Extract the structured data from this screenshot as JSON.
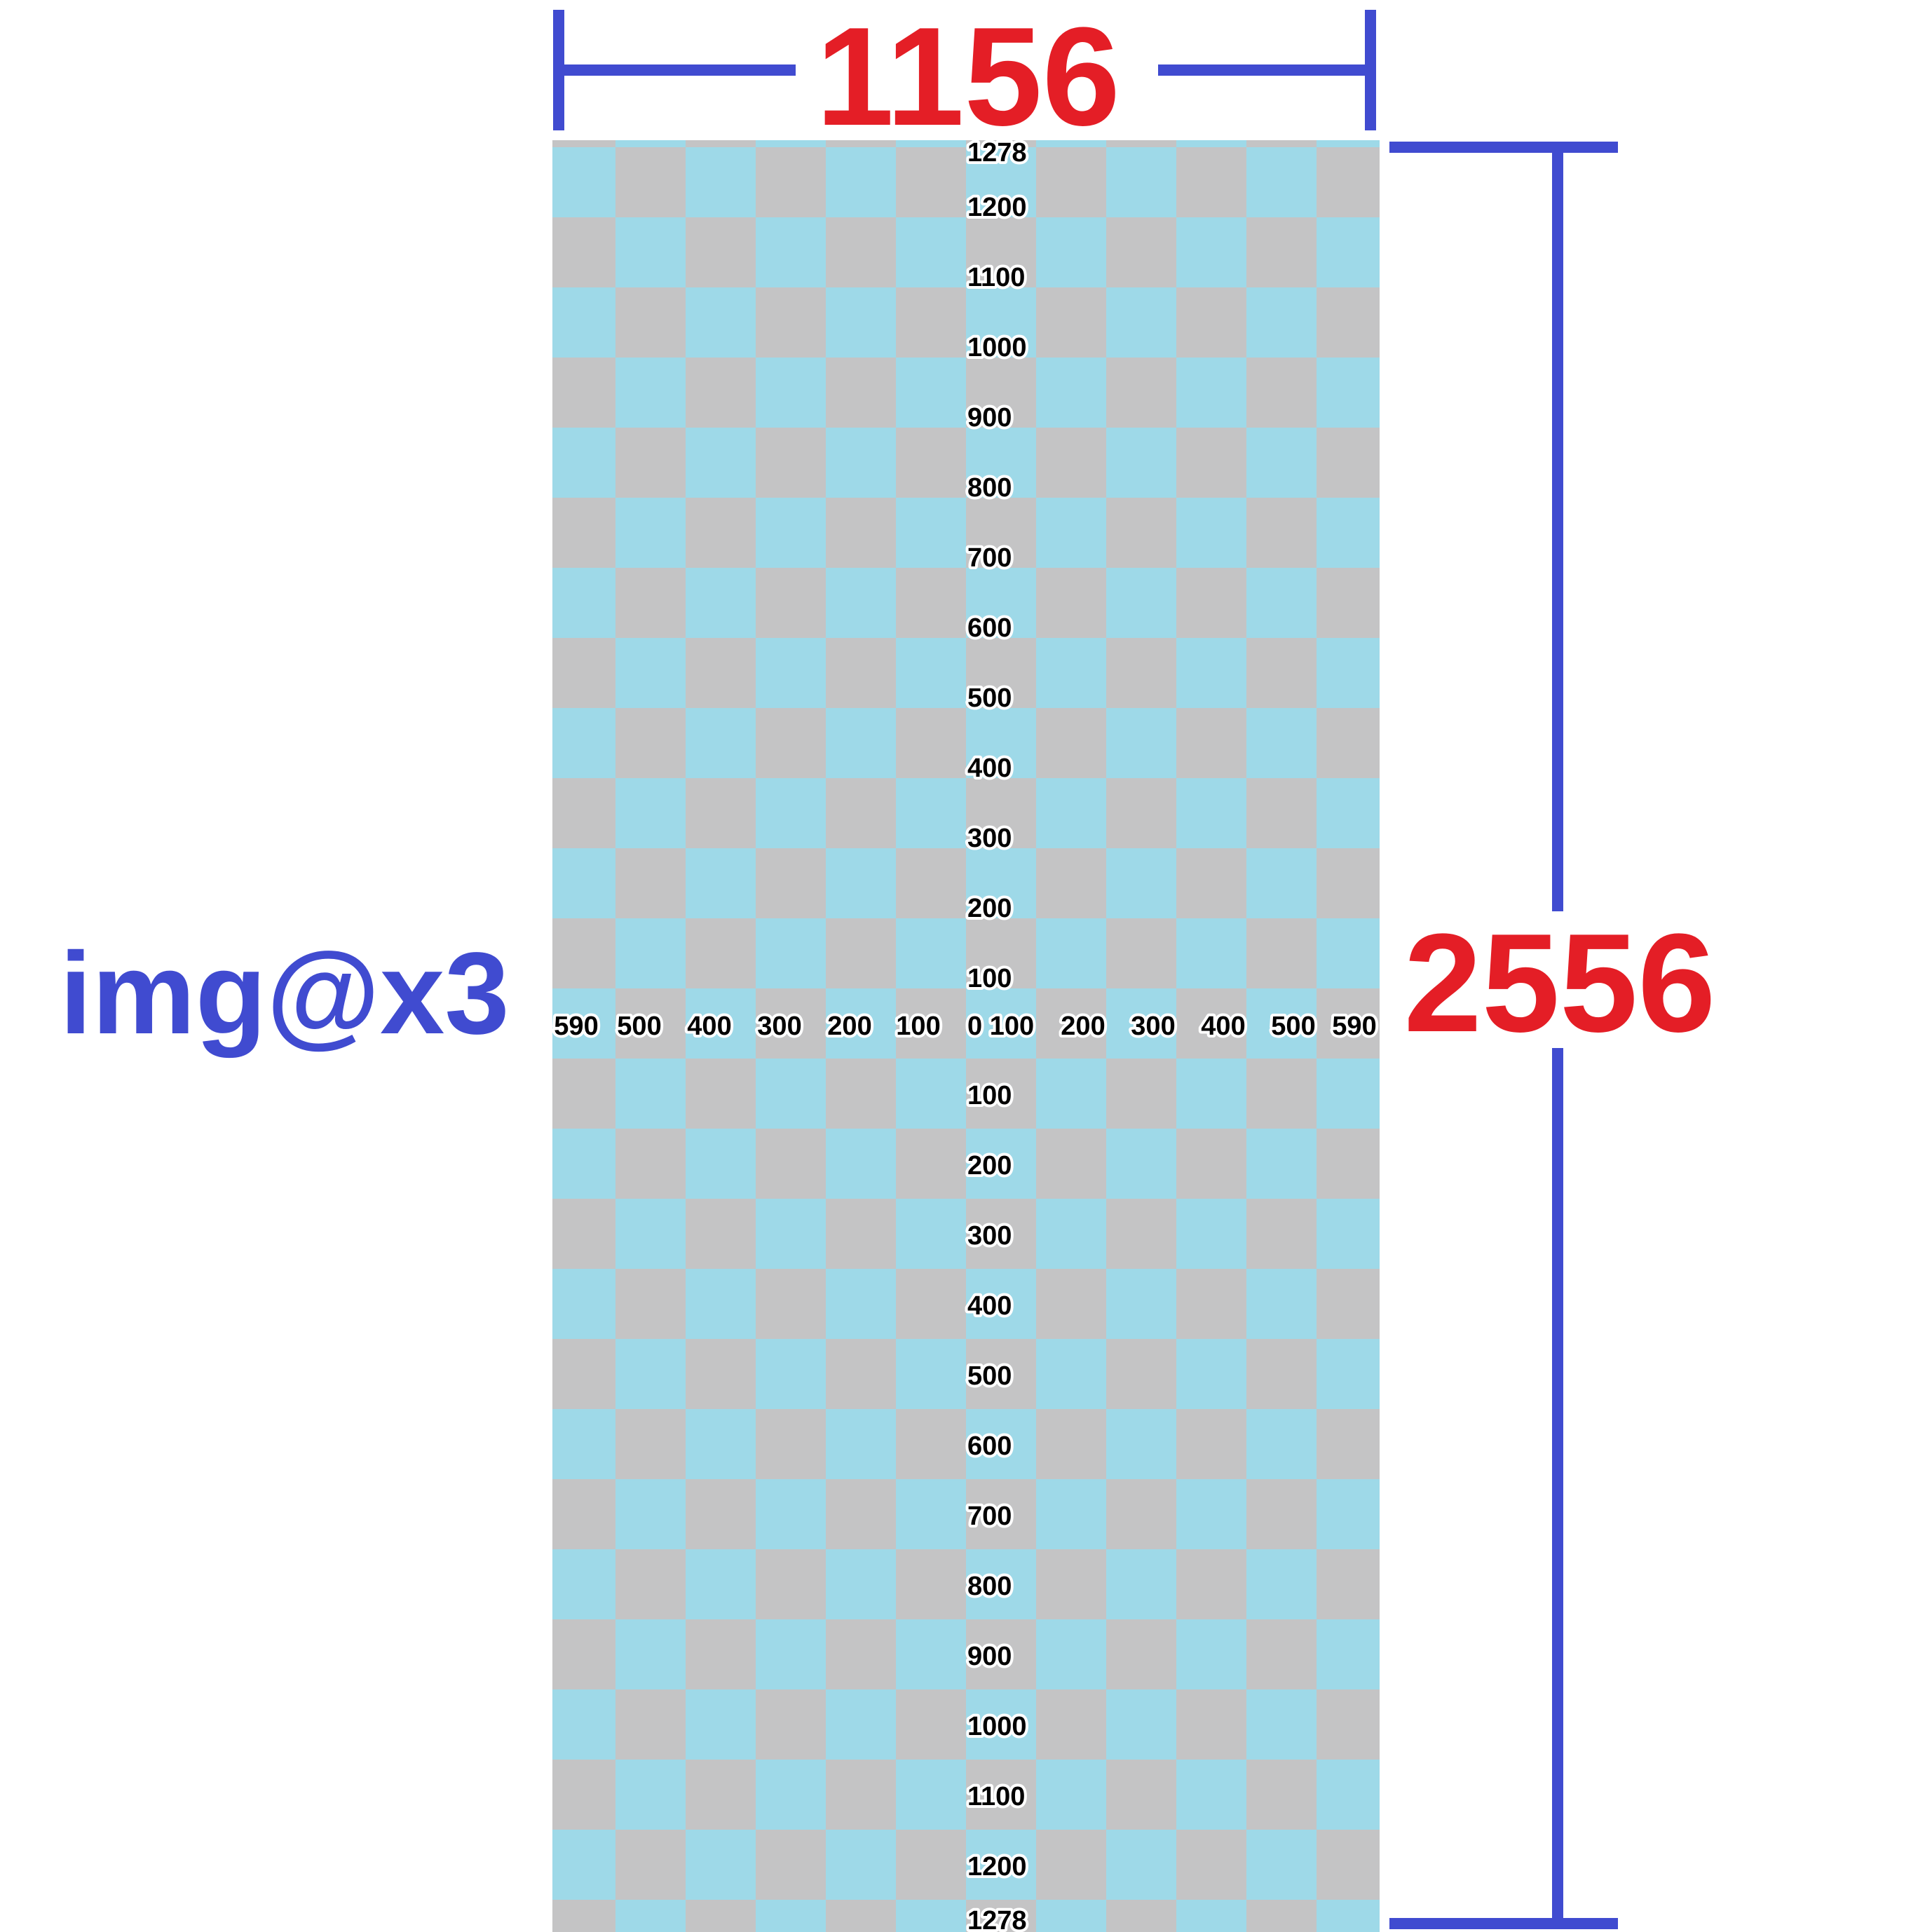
{
  "dimensions": {
    "width_label": "1156",
    "height_label": "2556",
    "scale_label": "img@x3"
  },
  "colors": {
    "dimension_text": "#e41e26",
    "bracket": "#404bd0",
    "scale_text": "#404bd0",
    "checker_gray": "#c4c4c5",
    "checker_blue": "#9ed9e8"
  },
  "ruler": {
    "x_labels_left": [
      "590",
      "500",
      "400",
      "300",
      "200",
      "100"
    ],
    "x_center_label": "0 100",
    "x_labels_right": [
      "200",
      "300",
      "400",
      "500",
      "590"
    ],
    "y_labels_top": [
      "1278",
      "1200",
      "1100",
      "1000",
      "900",
      "800",
      "700",
      "600",
      "500",
      "400",
      "300",
      "200",
      "100"
    ],
    "y_labels_bottom": [
      "100",
      "200",
      "300",
      "400",
      "500",
      "600",
      "700",
      "800",
      "900",
      "1000",
      "1100",
      "1200",
      "1278"
    ]
  }
}
